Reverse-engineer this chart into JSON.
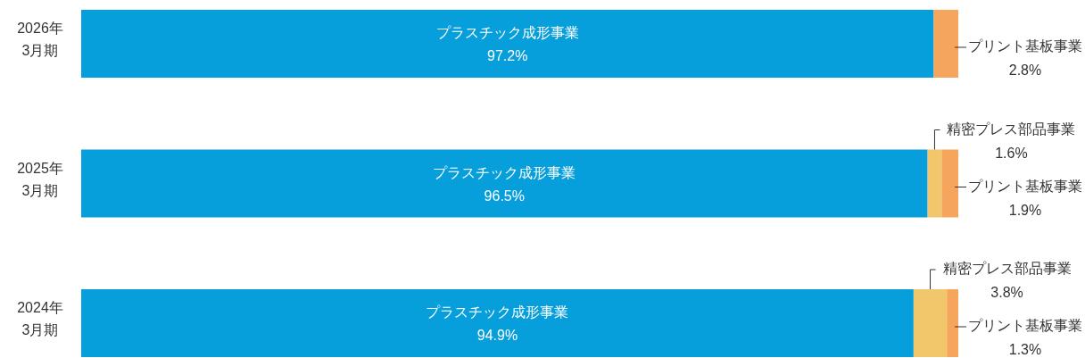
{
  "chart_data": {
    "type": "bar",
    "orientation": "horizontal",
    "stacked": true,
    "tick_labels": "y",
    "categories": [
      "2026年\n3月期",
      "2025年\n3月期",
      "2024年\n3月期"
    ],
    "xlim": [
      0,
      100
    ],
    "series": [
      {
        "name": "プラスチック成形事業",
        "color": "#079fdb",
        "values": [
          97.2,
          96.5,
          94.9
        ],
        "value_labels": [
          "97.2%",
          "96.5%",
          "94.9%"
        ]
      },
      {
        "name": "精密プレス部品事業",
        "color": "#f2c76b",
        "values": [
          null,
          1.6,
          3.8
        ],
        "value_labels": [
          null,
          "1.6%",
          "3.8%"
        ]
      },
      {
        "name": "プリント基板事業",
        "color": "#f6a55c",
        "values": [
          2.8,
          1.9,
          1.3
        ],
        "value_labels": [
          "2.8%",
          "1.9%",
          "1.3%"
        ]
      }
    ]
  }
}
